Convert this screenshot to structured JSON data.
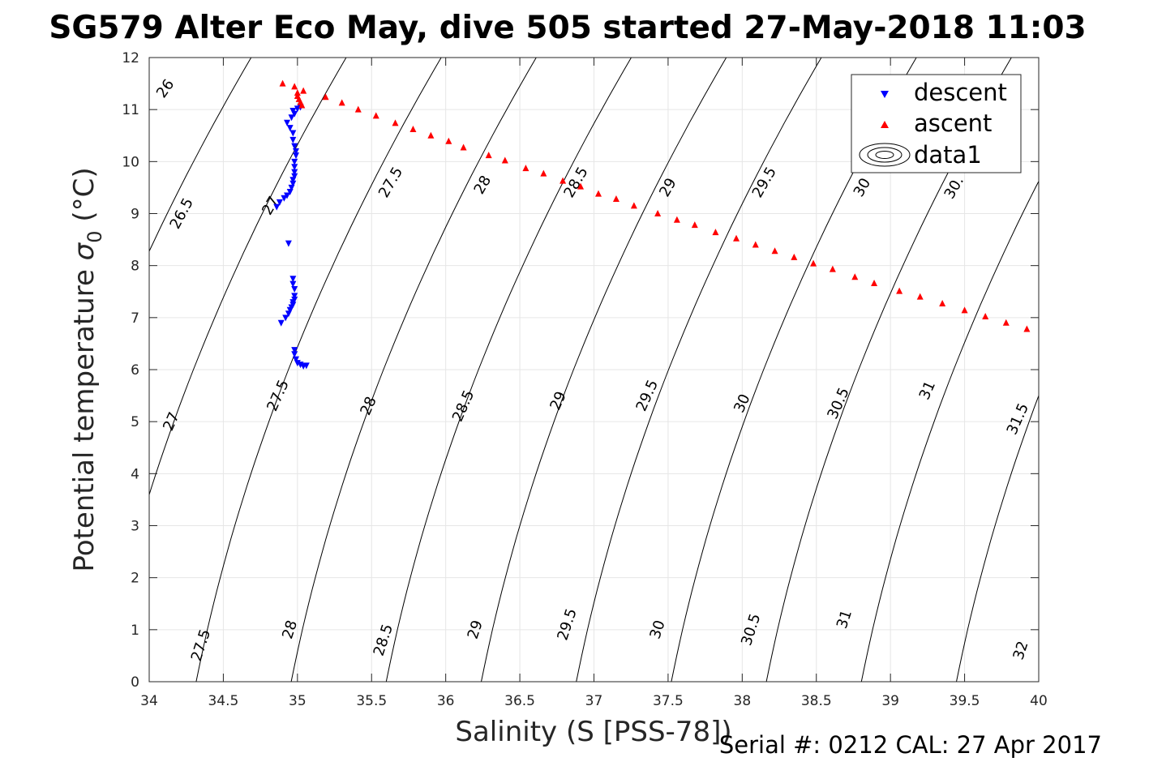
{
  "chart_data": {
    "type": "scatter",
    "title": "SG579 Alter Eco May, dive 505 started 27-May-2018 11:03",
    "xlabel": "Salinity (S [PSS-78])",
    "ylabel_main": "Potential temperature ",
    "ylabel_sigma": "σ",
    "ylabel_sub": "0",
    "ylabel_unit": " (°C)",
    "xlim": [
      34,
      40
    ],
    "ylim": [
      0,
      12
    ],
    "grid": true,
    "x_ticks": [
      34,
      34.5,
      35,
      35.5,
      36,
      36.5,
      37,
      37.5,
      38,
      38.5,
      39,
      39.5,
      40
    ],
    "x_tick_labels": [
      "34",
      "34.5",
      "35",
      "35.5",
      "36",
      "36.5",
      "37",
      "37.5",
      "38",
      "38.5",
      "39",
      "39.5",
      "40"
    ],
    "y_ticks": [
      0,
      1,
      2,
      3,
      4,
      5,
      6,
      7,
      8,
      9,
      10,
      11,
      12
    ],
    "y_tick_labels": [
      "0",
      "1",
      "2",
      "3",
      "4",
      "5",
      "6",
      "7",
      "8",
      "9",
      "10",
      "11",
      "12"
    ],
    "legend_position": "top-right",
    "legend": [
      "descent",
      "ascent",
      "data1"
    ],
    "series": [
      {
        "name": "descent",
        "marker": "triangle-down",
        "color": "#0000ff",
        "points": [
          [
            35.06,
            6.08
          ],
          [
            35.04,
            6.07
          ],
          [
            35.02,
            6.1
          ],
          [
            35.0,
            6.13
          ],
          [
            34.99,
            6.2
          ],
          [
            34.98,
            6.3
          ],
          [
            34.98,
            6.38
          ],
          [
            34.89,
            6.9
          ],
          [
            34.92,
            7.0
          ],
          [
            34.94,
            7.08
          ],
          [
            34.95,
            7.15
          ],
          [
            34.96,
            7.2
          ],
          [
            34.97,
            7.25
          ],
          [
            34.97,
            7.3
          ],
          [
            34.98,
            7.35
          ],
          [
            34.98,
            7.42
          ],
          [
            34.98,
            7.55
          ],
          [
            34.97,
            7.65
          ],
          [
            34.97,
            7.75
          ],
          [
            34.94,
            8.43
          ],
          [
            34.86,
            9.13
          ],
          [
            34.88,
            9.22
          ],
          [
            34.91,
            9.3
          ],
          [
            34.93,
            9.35
          ],
          [
            34.95,
            9.42
          ],
          [
            34.96,
            9.5
          ],
          [
            34.97,
            9.58
          ],
          [
            34.97,
            9.65
          ],
          [
            34.98,
            9.72
          ],
          [
            34.98,
            9.8
          ],
          [
            34.98,
            9.9
          ],
          [
            34.98,
            10.0
          ],
          [
            34.99,
            10.12
          ],
          [
            34.99,
            10.2
          ],
          [
            34.98,
            10.3
          ],
          [
            34.97,
            10.42
          ],
          [
            34.97,
            10.55
          ],
          [
            34.95,
            10.65
          ],
          [
            34.93,
            10.75
          ],
          [
            34.96,
            10.85
          ],
          [
            34.98,
            10.92
          ],
          [
            34.97,
            10.98
          ],
          [
            35.0,
            11.02
          ],
          [
            35.02,
            11.05
          ]
        ]
      },
      {
        "name": "ascent",
        "marker": "triangle-up",
        "color": "#ff0000",
        "points": [
          [
            34.9,
            11.5
          ],
          [
            34.98,
            11.44
          ],
          [
            35.04,
            11.36
          ],
          [
            35.0,
            11.32
          ],
          [
            35.0,
            11.26
          ],
          [
            35.01,
            11.2
          ],
          [
            35.02,
            11.14
          ],
          [
            35.03,
            11.08
          ],
          [
            35.19,
            11.24
          ],
          [
            35.3,
            11.13
          ],
          [
            35.41,
            11.0
          ],
          [
            35.53,
            10.88
          ],
          [
            35.66,
            10.74
          ],
          [
            35.78,
            10.62
          ],
          [
            35.9,
            10.5
          ],
          [
            36.02,
            10.39
          ],
          [
            36.12,
            10.27
          ],
          [
            36.29,
            10.12
          ],
          [
            36.4,
            10.02
          ],
          [
            36.54,
            9.87
          ],
          [
            36.66,
            9.77
          ],
          [
            36.79,
            9.63
          ],
          [
            36.91,
            9.52
          ],
          [
            37.03,
            9.38
          ],
          [
            37.15,
            9.28
          ],
          [
            37.27,
            9.15
          ],
          [
            37.43,
            9.0
          ],
          [
            37.56,
            8.88
          ],
          [
            37.68,
            8.78
          ],
          [
            37.82,
            8.64
          ],
          [
            37.96,
            8.52
          ],
          [
            38.09,
            8.4
          ],
          [
            38.22,
            8.28
          ],
          [
            38.35,
            8.16
          ],
          [
            38.48,
            8.04
          ],
          [
            38.61,
            7.93
          ],
          [
            38.76,
            7.78
          ],
          [
            38.89,
            7.66
          ],
          [
            39.06,
            7.51
          ],
          [
            39.2,
            7.4
          ],
          [
            39.35,
            7.27
          ],
          [
            39.5,
            7.14
          ],
          [
            39.64,
            7.02
          ],
          [
            39.78,
            6.9
          ],
          [
            39.92,
            6.78
          ]
        ]
      }
    ],
    "contour_levels": [
      26,
      26.5,
      27,
      27.5,
      28,
      28.5,
      29,
      29.5,
      30,
      30.5,
      31,
      31.5,
      32
    ],
    "contour_labels": [
      {
        "text": "26",
        "x": 34.11,
        "y": 11.4,
        "angle": -55
      },
      {
        "text": "26.5",
        "x": 34.22,
        "y": 9.0,
        "angle": -62
      },
      {
        "text": "27",
        "x": 34.15,
        "y": 5.0,
        "angle": -66
      },
      {
        "text": "27.5",
        "x": 34.35,
        "y": 0.7,
        "angle": -72
      },
      {
        "text": "27",
        "x": 34.82,
        "y": 9.15,
        "angle": -60
      },
      {
        "text": "27.5",
        "x": 34.87,
        "y": 5.5,
        "angle": -66
      },
      {
        "text": "28",
        "x": 34.95,
        "y": 1.0,
        "angle": -72
      },
      {
        "text": "27.5",
        "x": 35.63,
        "y": 9.6,
        "angle": -60
      },
      {
        "text": "28",
        "x": 35.48,
        "y": 5.3,
        "angle": -66
      },
      {
        "text": "28.5",
        "x": 35.58,
        "y": 0.8,
        "angle": -72
      },
      {
        "text": "28",
        "x": 36.25,
        "y": 9.55,
        "angle": -60
      },
      {
        "text": "28.5",
        "x": 36.12,
        "y": 5.3,
        "angle": -66
      },
      {
        "text": "29",
        "x": 36.2,
        "y": 1.0,
        "angle": -72
      },
      {
        "text": "28.5",
        "x": 36.88,
        "y": 9.6,
        "angle": -60
      },
      {
        "text": "29",
        "x": 36.76,
        "y": 5.4,
        "angle": -66
      },
      {
        "text": "29.5",
        "x": 36.82,
        "y": 1.1,
        "angle": -72
      },
      {
        "text": "29",
        "x": 37.5,
        "y": 9.5,
        "angle": -60
      },
      {
        "text": "29.5",
        "x": 37.36,
        "y": 5.5,
        "angle": -66
      },
      {
        "text": "30",
        "x": 37.43,
        "y": 1.0,
        "angle": -72
      },
      {
        "text": "29.5",
        "x": 38.15,
        "y": 9.6,
        "angle": -60
      },
      {
        "text": "30",
        "x": 38.0,
        "y": 5.35,
        "angle": -66
      },
      {
        "text": "30.5",
        "x": 38.06,
        "y": 1.0,
        "angle": -72
      },
      {
        "text": "30",
        "x": 38.81,
        "y": 9.5,
        "angle": -60
      },
      {
        "text": "30.5",
        "x": 38.65,
        "y": 5.35,
        "angle": -66
      },
      {
        "text": "31",
        "x": 38.69,
        "y": 1.2,
        "angle": -72
      },
      {
        "text": "30.",
        "x": 39.43,
        "y": 9.5,
        "angle": -60
      },
      {
        "text": "31",
        "x": 39.25,
        "y": 5.6,
        "angle": -66
      },
      {
        "text": "31.5",
        "x": 39.86,
        "y": 5.05,
        "angle": -66
      },
      {
        "text": "32",
        "x": 39.88,
        "y": 0.6,
        "angle": -72
      }
    ],
    "footer": "Serial #: 0212  CAL: 27 Apr 2017"
  }
}
